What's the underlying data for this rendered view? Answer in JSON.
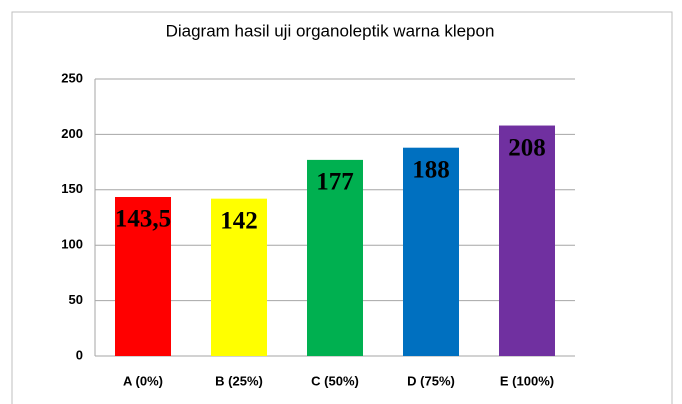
{
  "chart_data": {
    "type": "bar",
    "title": "Diagram hasil uji organoleptik warna klepon",
    "categories": [
      "A (0%)",
      "B (25%)",
      "C (50%)",
      "D (75%)",
      "E (100%)"
    ],
    "values": [
      143.5,
      142,
      177,
      188,
      208
    ],
    "value_labels": [
      "143,5",
      "142",
      "177",
      "188",
      "208"
    ],
    "colors": [
      "#ff0000",
      "#ffff00",
      "#00b050",
      "#0070c0",
      "#7030a0"
    ],
    "ylim": [
      0,
      250
    ],
    "yticks": [
      0,
      50,
      100,
      150,
      200,
      250
    ],
    "grid": true
  }
}
